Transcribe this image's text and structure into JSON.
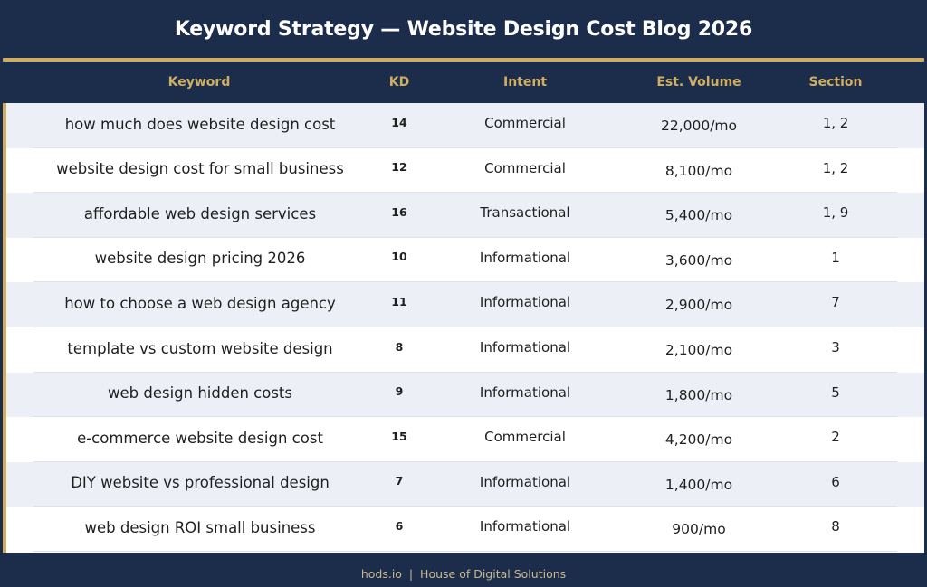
{
  "title": "Keyword Strategy — Website Design Cost Blog 2026",
  "colors": {
    "background": "#1c2d4b",
    "accent_gold": "#cfae62",
    "row_alt": "#ecf0f6",
    "row_white": "#ffffff",
    "text": "#1f1f1f",
    "footer_text": "#c9b98e"
  },
  "table": {
    "columns": [
      "Keyword",
      "KD",
      "Intent",
      "Est. Volume",
      "Section"
    ],
    "rows": [
      {
        "keyword": "how much does website design cost",
        "kd": "14",
        "intent": "Commercial",
        "volume": "22,000/mo",
        "section": "1, 2"
      },
      {
        "keyword": "website design cost for small business",
        "kd": "12",
        "intent": "Commercial",
        "volume": "8,100/mo",
        "section": "1, 2"
      },
      {
        "keyword": "affordable web design services",
        "kd": "16",
        "intent": "Transactional",
        "volume": "5,400/mo",
        "section": "1, 9"
      },
      {
        "keyword": "website design pricing 2026",
        "kd": "10",
        "intent": "Informational",
        "volume": "3,600/mo",
        "section": "1"
      },
      {
        "keyword": "how to choose a web design agency",
        "kd": "11",
        "intent": "Informational",
        "volume": "2,900/mo",
        "section": "7"
      },
      {
        "keyword": "template vs custom website design",
        "kd": "8",
        "intent": "Informational",
        "volume": "2,100/mo",
        "section": "3"
      },
      {
        "keyword": "web design hidden costs",
        "kd": "9",
        "intent": "Informational",
        "volume": "1,800/mo",
        "section": "5"
      },
      {
        "keyword": "e-commerce website design cost",
        "kd": "15",
        "intent": "Commercial",
        "volume": "4,200/mo",
        "section": "2"
      },
      {
        "keyword": "DIY website vs professional design",
        "kd": "7",
        "intent": "Informational",
        "volume": "1,400/mo",
        "section": "6"
      },
      {
        "keyword": "web design ROI small business",
        "kd": "6",
        "intent": "Informational",
        "volume": "900/mo",
        "section": "8"
      }
    ]
  },
  "footer": "hods.io  |  House of Digital Solutions"
}
